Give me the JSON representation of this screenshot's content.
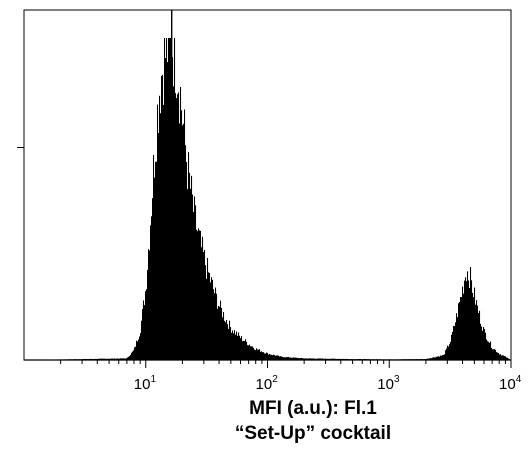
{
  "chart_data": {
    "type": "area",
    "title": "",
    "xlabel": "MFI (a.u.): Fl.1",
    "subtitle": "“Set-Up” cocktail",
    "ylabel": "",
    "x_scale": "log",
    "xlim": [
      1,
      10000
    ],
    "ylim": [
      0,
      1.0
    ],
    "x_ticks": [
      {
        "base": "10",
        "exp": "1",
        "value": 10
      },
      {
        "base": "10",
        "exp": "2",
        "value": 100
      },
      {
        "base": "10",
        "exp": "3",
        "value": 1000
      },
      {
        "base": "10",
        "exp": "4",
        "value": 10000
      }
    ],
    "y_major_ticks": [
      0.66
    ],
    "grid": false,
    "fill_color": "#000000",
    "series": [
      {
        "x": [
          1,
          7,
          8,
          9,
          10,
          11,
          12,
          13,
          14,
          15,
          16,
          17,
          18,
          19,
          20,
          22,
          25,
          28,
          32,
          36,
          40,
          45,
          50,
          60,
          70,
          80,
          100,
          130,
          200,
          500,
          1000,
          2000,
          2800,
          3200,
          3600,
          4000,
          4300,
          4600,
          5000,
          5500,
          6000,
          7000,
          8000,
          9000,
          10000
        ],
        "y": [
          0.0,
          0.005,
          0.03,
          0.09,
          0.22,
          0.45,
          0.68,
          0.85,
          0.93,
          0.97,
          1.0,
          0.97,
          0.93,
          0.85,
          0.76,
          0.6,
          0.45,
          0.36,
          0.28,
          0.22,
          0.17,
          0.13,
          0.1,
          0.07,
          0.05,
          0.035,
          0.02,
          0.01,
          0.005,
          0.003,
          0.002,
          0.003,
          0.015,
          0.06,
          0.14,
          0.22,
          0.28,
          0.26,
          0.2,
          0.14,
          0.09,
          0.04,
          0.02,
          0.01,
          0.0
        ]
      }
    ]
  }
}
